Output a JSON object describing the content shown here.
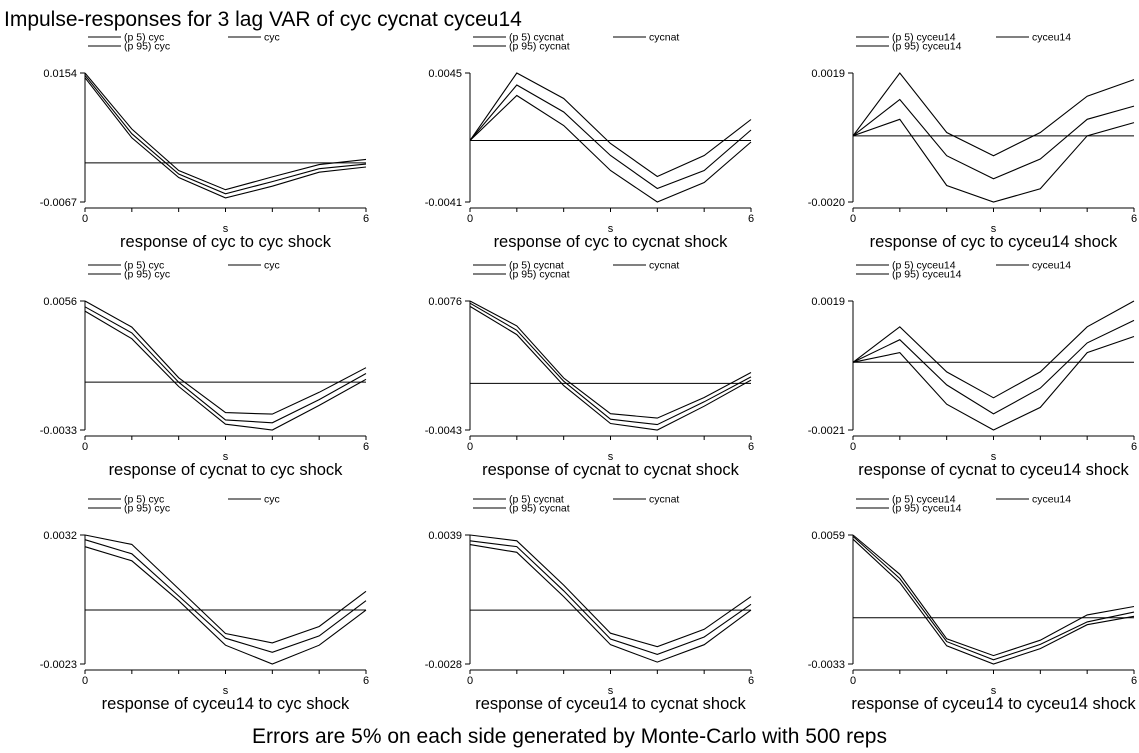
{
  "title": "Impulse-responses for 3 lag VAR of cyc cycnat cyceu14",
  "note": "Errors are 5% on each side generated by Monte-Carlo with 500 reps",
  "chart_data": [
    {
      "type": "line",
      "title": "response of cyc to cyc shock",
      "xlabel": "s",
      "x": [
        0,
        1,
        2,
        3,
        4,
        5,
        6
      ],
      "xlim": [
        0,
        6
      ],
      "xticks": [
        0,
        6
      ],
      "ylim": [
        -0.0067,
        0.0154
      ],
      "yticks": [
        0.0154,
        -0.0067
      ],
      "ytick_labels": [
        "0.0154",
        "-0.0067"
      ],
      "zero_line": true,
      "legend": [
        "(p 5) cyc",
        "cyc",
        "(p 95) cyc"
      ],
      "series": [
        {
          "name": "(p 5) cyc",
          "values": [
            0.0146,
            0.0043,
            -0.0025,
            -0.006,
            -0.004,
            -0.0016,
            -0.0007
          ]
        },
        {
          "name": "cyc",
          "values": [
            0.015,
            0.005,
            -0.0019,
            -0.0053,
            -0.0032,
            -0.001,
            -0.0002
          ]
        },
        {
          "name": "(p 95) cyc",
          "values": [
            0.0154,
            0.0058,
            -0.0013,
            -0.0046,
            -0.0024,
            -0.0003,
            0.0006
          ]
        }
      ]
    },
    {
      "type": "line",
      "title": "response of cyc to cycnat shock",
      "xlabel": "s",
      "x": [
        0,
        1,
        2,
        3,
        4,
        5,
        6
      ],
      "xlim": [
        0,
        6
      ],
      "xticks": [
        0,
        6
      ],
      "ylim": [
        -0.0041,
        0.0045
      ],
      "yticks": [
        0.0045,
        -0.0041
      ],
      "ytick_labels": [
        "0.0045",
        "-0.0041"
      ],
      "zero_line": true,
      "legend": [
        "(p 5) cycnat",
        "cycnat",
        "(p 95) cycnat"
      ],
      "series": [
        {
          "name": "(p 5) cycnat",
          "values": [
            0.0,
            0.003,
            0.001,
            -0.002,
            -0.0041,
            -0.0028,
            -0.0001
          ]
        },
        {
          "name": "cycnat",
          "values": [
            0.0,
            0.0037,
            0.0019,
            -0.001,
            -0.0032,
            -0.002,
            0.0007
          ]
        },
        {
          "name": "(p 95) cycnat",
          "values": [
            0.0,
            0.0045,
            0.0028,
            -0.0002,
            -0.0024,
            -0.001,
            0.0014
          ]
        }
      ]
    },
    {
      "type": "line",
      "title": "response of cyc to cyceu14 shock",
      "xlabel": "s",
      "x": [
        0,
        1,
        2,
        3,
        4,
        5,
        6
      ],
      "xlim": [
        0,
        6
      ],
      "xticks": [
        0,
        6
      ],
      "ylim": [
        -0.002,
        0.0019
      ],
      "yticks": [
        0.0019,
        -0.002
      ],
      "ytick_labels": [
        "0.0019",
        "-0.0020"
      ],
      "zero_line": true,
      "legend": [
        "(p 5) cyceu14",
        "cyceu14",
        "(p 95) cyceu14"
      ],
      "series": [
        {
          "name": "(p 5) cyceu14",
          "values": [
            0.0,
            0.0005,
            -0.0015,
            -0.002,
            -0.0016,
            0.0,
            0.0004
          ]
        },
        {
          "name": "cyceu14",
          "values": [
            0.0,
            0.0011,
            -0.0006,
            -0.0013,
            -0.0007,
            0.0005,
            0.0009
          ]
        },
        {
          "name": "(p 95) cyceu14",
          "values": [
            0.0,
            0.0019,
            0.0001,
            -0.0006,
            0.0001,
            0.0012,
            0.0017
          ]
        }
      ]
    },
    {
      "type": "line",
      "title": "response of cycnat to cyc shock",
      "xlabel": "s",
      "x": [
        0,
        1,
        2,
        3,
        4,
        5,
        6
      ],
      "xlim": [
        0,
        6
      ],
      "xticks": [
        0,
        6
      ],
      "ylim": [
        -0.0033,
        0.0056
      ],
      "yticks": [
        0.0056,
        -0.0033
      ],
      "ytick_labels": [
        "0.0056",
        "-0.0033"
      ],
      "zero_line": true,
      "legend": [
        "(p 5) cyc",
        "cyc",
        "(p 95) cyc"
      ],
      "series": [
        {
          "name": "(p 5) cyc",
          "values": [
            0.0049,
            0.003,
            -0.0003,
            -0.0029,
            -0.0033,
            -0.0016,
            0.0002
          ]
        },
        {
          "name": "cyc",
          "values": [
            0.0052,
            0.0034,
            0.0,
            -0.0026,
            -0.0028,
            -0.0012,
            0.0006
          ]
        },
        {
          "name": "(p 95) cyc",
          "values": [
            0.0056,
            0.0038,
            0.0003,
            -0.0021,
            -0.0022,
            -0.0007,
            0.001
          ]
        }
      ]
    },
    {
      "type": "line",
      "title": "response of cycnat to cycnat shock",
      "xlabel": "s",
      "x": [
        0,
        1,
        2,
        3,
        4,
        5,
        6
      ],
      "xlim": [
        0,
        6
      ],
      "xticks": [
        0,
        6
      ],
      "ylim": [
        -0.0043,
        0.0076
      ],
      "yticks": [
        0.0076,
        -0.0043
      ],
      "ytick_labels": [
        "0.0076",
        "-0.0043"
      ],
      "zero_line": true,
      "legend": [
        "(p 5) cycnat",
        "cycnat",
        "(p 95) cycnat"
      ],
      "series": [
        {
          "name": "(p 5) cycnat",
          "values": [
            0.0071,
            0.0045,
            -0.0002,
            -0.0037,
            -0.0043,
            -0.0021,
            0.0003
          ]
        },
        {
          "name": "cycnat",
          "values": [
            0.0074,
            0.0049,
            0.0002,
            -0.0033,
            -0.0038,
            -0.0017,
            0.0006
          ]
        },
        {
          "name": "(p 95) cycnat",
          "values": [
            0.0076,
            0.0053,
            0.0005,
            -0.0028,
            -0.0032,
            -0.0013,
            0.001
          ]
        }
      ]
    },
    {
      "type": "line",
      "title": "response of cycnat to cyceu14 shock",
      "xlabel": "s",
      "x": [
        0,
        1,
        2,
        3,
        4,
        5,
        6
      ],
      "xlim": [
        0,
        6
      ],
      "xticks": [
        0,
        6
      ],
      "ylim": [
        -0.0021,
        0.0019
      ],
      "yticks": [
        0.0019,
        -0.0021
      ],
      "ytick_labels": [
        "0.0019",
        "-0.0021"
      ],
      "zero_line": true,
      "legend": [
        "(p 5) cyceu14",
        "cyceu14",
        "(p 95) cyceu14"
      ],
      "series": [
        {
          "name": "(p 5) cyceu14",
          "values": [
            0.0,
            0.0003,
            -0.0013,
            -0.0021,
            -0.0014,
            0.0003,
            0.0008
          ]
        },
        {
          "name": "cyceu14",
          "values": [
            0.0,
            0.0007,
            -0.0007,
            -0.0016,
            -0.0008,
            0.0006,
            0.0013
          ]
        },
        {
          "name": "(p 95) cyceu14",
          "values": [
            0.0,
            0.0011,
            -0.0003,
            -0.0011,
            -0.0003,
            0.0011,
            0.0019
          ]
        }
      ]
    },
    {
      "type": "line",
      "title": "response of cyceu14 to cyc shock",
      "xlabel": "s",
      "x": [
        0,
        1,
        2,
        3,
        4,
        5,
        6
      ],
      "xlim": [
        0,
        6
      ],
      "xticks": [
        0,
        6
      ],
      "ylim": [
        -0.0023,
        0.0032
      ],
      "yticks": [
        0.0032,
        -0.0023
      ],
      "ytick_labels": [
        "0.0032",
        "-0.0023"
      ],
      "zero_line": true,
      "legend": [
        "(p 5) cyc",
        "cyc",
        "(p 95) cyc"
      ],
      "series": [
        {
          "name": "(p 5) cyc",
          "values": [
            0.0027,
            0.0021,
            0.0004,
            -0.0015,
            -0.0023,
            -0.0015,
            0.0
          ],
          "_note": "lower band"
        },
        {
          "name": "cyc",
          "values": [
            0.003,
            0.0024,
            0.0006,
            -0.0012,
            -0.0018,
            -0.0011,
            0.0004
          ]
        },
        {
          "name": "(p 95) cyc",
          "values": [
            0.0032,
            0.0028,
            0.0009,
            -0.001,
            -0.0014,
            -0.0007,
            0.0008
          ]
        }
      ]
    },
    {
      "type": "line",
      "title": "response of cyceu14 to cycnat shock",
      "xlabel": "s",
      "x": [
        0,
        1,
        2,
        3,
        4,
        5,
        6
      ],
      "xlim": [
        0,
        6
      ],
      "xticks": [
        0,
        6
      ],
      "ylim": [
        -0.0028,
        0.0039
      ],
      "yticks": [
        0.0039,
        -0.0028
      ],
      "ytick_labels": [
        "0.0039",
        "-0.0028"
      ],
      "zero_line": true,
      "legend": [
        "(p 5) cycnat",
        "cycnat",
        "(p 95) cycnat"
      ],
      "series": [
        {
          "name": "(p 5) cycnat",
          "values": [
            0.0034,
            0.003,
            0.0007,
            -0.0018,
            -0.0027,
            -0.0018,
            0.0
          ],
          "_note": "lower band"
        },
        {
          "name": "cycnat",
          "values": [
            0.0036,
            0.0033,
            0.001,
            -0.0015,
            -0.0023,
            -0.0014,
            0.0003
          ]
        },
        {
          "name": "(p 95) cycnat",
          "values": [
            0.0039,
            0.0036,
            0.0013,
            -0.0012,
            -0.0019,
            -0.001,
            0.0007
          ]
        }
      ]
    },
    {
      "type": "line",
      "title": "response of cyceu14 to cyceu14 shock",
      "xlabel": "s",
      "x": [
        0,
        1,
        2,
        3,
        4,
        5,
        6
      ],
      "xlim": [
        0,
        6
      ],
      "xticks": [
        0,
        6
      ],
      "ylim": [
        -0.0033,
        0.0059
      ],
      "yticks": [
        0.0059,
        -0.0033
      ],
      "ytick_labels": [
        "0.0059",
        "-0.0033"
      ],
      "zero_line": true,
      "legend": [
        "(p 5) cyceu14",
        "cyceu14",
        "(p 95) cyceu14"
      ],
      "series": [
        {
          "name": "(p 5) cyceu14",
          "values": [
            0.0056,
            0.0025,
            -0.002,
            -0.0033,
            -0.0022,
            -0.0005,
            0.0001
          ]
        },
        {
          "name": "cyceu14",
          "values": [
            0.0058,
            0.0028,
            -0.0017,
            -0.003,
            -0.0019,
            -0.0003,
            0.0004
          ]
        },
        {
          "name": "(p 95) cyceu14",
          "values": [
            0.0059,
            0.0031,
            -0.0015,
            -0.0027,
            -0.0016,
            0.0002,
            0.0008
          ]
        }
      ]
    }
  ]
}
